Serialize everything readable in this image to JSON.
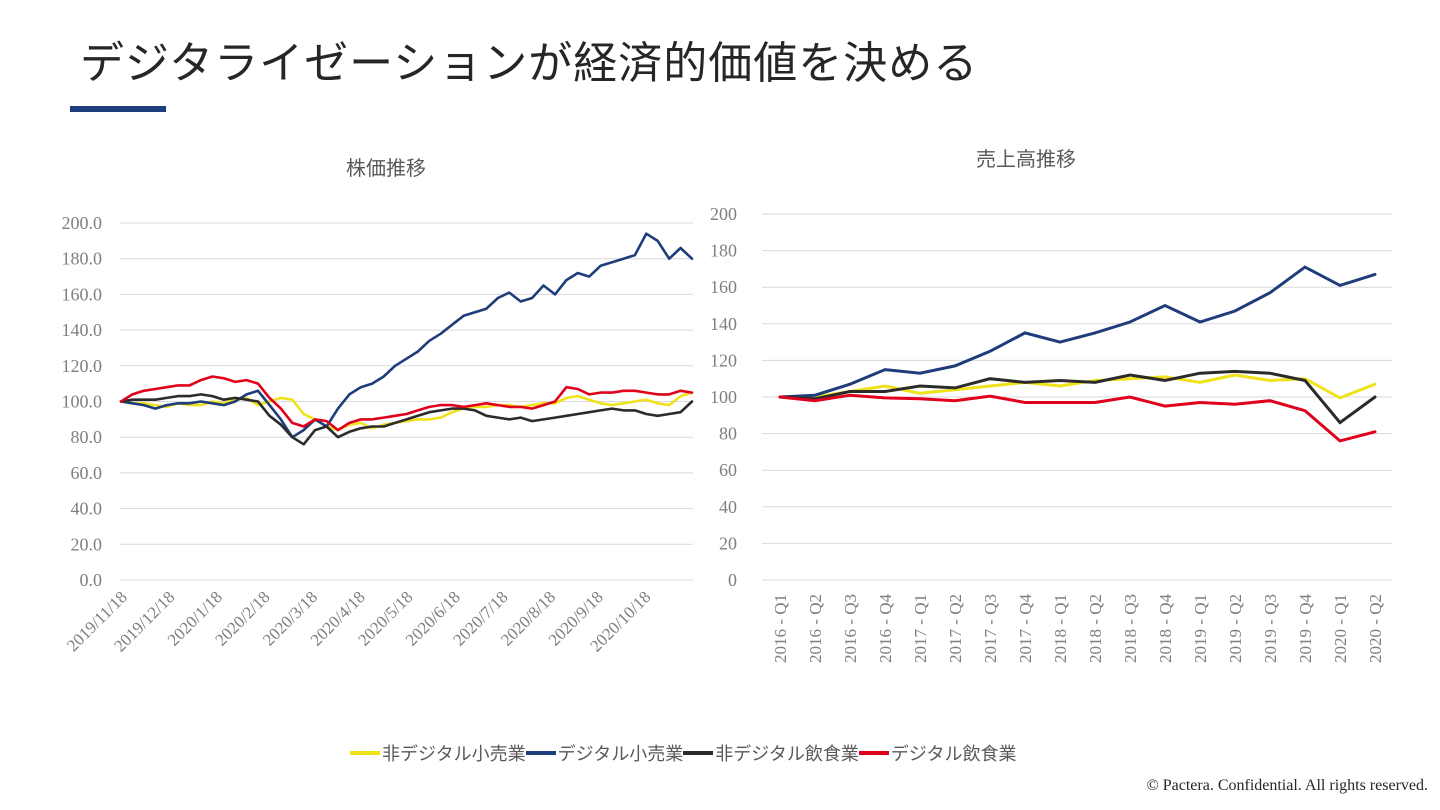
{
  "slide": {
    "title": "デジタライゼーションが経済的価値を決める",
    "accent_color": "#1f3d7a",
    "footer": "© Pactera.  Confidential.  All rights reserved."
  },
  "legend": [
    {
      "name": "非デジタル小売業",
      "color": "#f0e21a"
    },
    {
      "name": "デジタル小売業",
      "color": "#1f3d7a"
    },
    {
      "name": "非デジタル飲食業",
      "color": "#2b2b2b"
    },
    {
      "name": "デジタル飲食業",
      "color": "#e0001b"
    }
  ],
  "chart_data": [
    {
      "type": "line",
      "title": "株価推移",
      "xlabel": "",
      "ylabel": "",
      "ylim": [
        0,
        200
      ],
      "yticks": [
        "0.0",
        "20.0",
        "40.0",
        "60.0",
        "80.0",
        "100.0",
        "120.0",
        "140.0",
        "160.0",
        "180.0",
        "200.0"
      ],
      "x_tick_labels": [
        "2019/11/18",
        "2019/12/18",
        "2020/1/18",
        "2020/2/18",
        "2020/3/18",
        "2020/4/18",
        "2020/5/18",
        "2020/6/18",
        "2020/7/18",
        "2020/8/18",
        "2020/9/18",
        "2020/10/18"
      ],
      "grid": true,
      "legend": "bottom",
      "x_domain": [
        0,
        50
      ],
      "series": [
        {
          "name": "非デジタル小売業",
          "color": "#f0e21a",
          "values": [
            100,
            99,
            99,
            98,
            97,
            99,
            98,
            98,
            100,
            99,
            101,
            102,
            98,
            100,
            102,
            101,
            93,
            90,
            86,
            84,
            87,
            88,
            85,
            87,
            88,
            89,
            90,
            90,
            91,
            94,
            96,
            97,
            97,
            98,
            98,
            97,
            98,
            99,
            99,
            102,
            103,
            101,
            99,
            98,
            99,
            100,
            101,
            99,
            98,
            103,
            105
          ]
        },
        {
          "name": "デジタル小売業",
          "color": "#1f3d7a",
          "values": [
            100,
            99,
            98,
            96,
            98,
            99,
            99,
            100,
            99,
            98,
            100,
            104,
            106,
            98,
            90,
            80,
            84,
            90,
            86,
            96,
            104,
            108,
            110,
            114,
            120,
            124,
            128,
            134,
            138,
            143,
            148,
            150,
            152,
            158,
            161,
            156,
            158,
            165,
            160,
            168,
            172,
            170,
            176,
            178,
            180,
            182,
            194,
            190,
            180,
            186,
            180
          ]
        },
        {
          "name": "非デジタル飲食業",
          "color": "#2b2b2b",
          "values": [
            100,
            101,
            101,
            101,
            102,
            103,
            103,
            104,
            103,
            101,
            102,
            101,
            100,
            92,
            87,
            80,
            76,
            84,
            86,
            80,
            83,
            85,
            86,
            86,
            88,
            90,
            92,
            94,
            95,
            96,
            96,
            95,
            92,
            91,
            90,
            91,
            89,
            90,
            91,
            92,
            93,
            94,
            95,
            96,
            95,
            95,
            93,
            92,
            93,
            94,
            100
          ]
        },
        {
          "name": "デジタル飲食業",
          "color": "#e0001b",
          "values": [
            100,
            104,
            106,
            107,
            108,
            109,
            109,
            112,
            114,
            113,
            111,
            112,
            110,
            102,
            96,
            88,
            86,
            90,
            89,
            84,
            88,
            90,
            90,
            91,
            92,
            93,
            95,
            97,
            98,
            98,
            97,
            98,
            99,
            98,
            97,
            97,
            96,
            98,
            100,
            108,
            107,
            104,
            105,
            105,
            106,
            106,
            105,
            104,
            104,
            106,
            105
          ]
        }
      ]
    },
    {
      "type": "line",
      "title": "売上高推移",
      "xlabel": "",
      "ylabel": "",
      "ylim": [
        0,
        200
      ],
      "yticks": [
        "0",
        "20",
        "40",
        "60",
        "80",
        "100",
        "120",
        "140",
        "160",
        "180",
        "200"
      ],
      "categories": [
        "2016 - Q1",
        "2016 - Q2",
        "2016 - Q3",
        "2016 - Q4",
        "2017 - Q1",
        "2017 - Q2",
        "2017 - Q3",
        "2017 - Q4",
        "2018 - Q1",
        "2018 - Q2",
        "2018 - Q3",
        "2018 - Q4",
        "2019 - Q1",
        "2019 - Q2",
        "2019 - Q3",
        "2019 - Q4",
        "2020 - Q1",
        "2020 - Q2"
      ],
      "grid": true,
      "legend": "bottom",
      "series": [
        {
          "name": "非デジタル小売業",
          "color": "#f0e21a",
          "values": [
            100,
            100,
            103,
            106,
            102,
            104,
            106,
            108,
            106,
            109,
            110,
            111,
            108,
            112,
            109,
            110,
            99.5,
            107
          ]
        },
        {
          "name": "デジタル小売業",
          "color": "#1f3d7a",
          "values": [
            100,
            101,
            107,
            115,
            113,
            117,
            125,
            135,
            130,
            135,
            141,
            150,
            141,
            147,
            157,
            171,
            161,
            167
          ]
        },
        {
          "name": "非デジタル飲食業",
          "color": "#2b2b2b",
          "values": [
            100,
            99,
            103,
            103,
            106,
            105,
            110,
            108,
            109,
            108,
            112,
            109,
            113,
            114,
            113,
            109,
            86,
            100
          ]
        },
        {
          "name": "デジタル飲食業",
          "color": "#e0001b",
          "values": [
            100,
            98,
            101,
            99.5,
            99,
            98,
            100.5,
            97,
            97,
            97,
            100,
            95,
            97,
            96,
            98,
            92.5,
            76,
            81
          ]
        }
      ]
    }
  ]
}
